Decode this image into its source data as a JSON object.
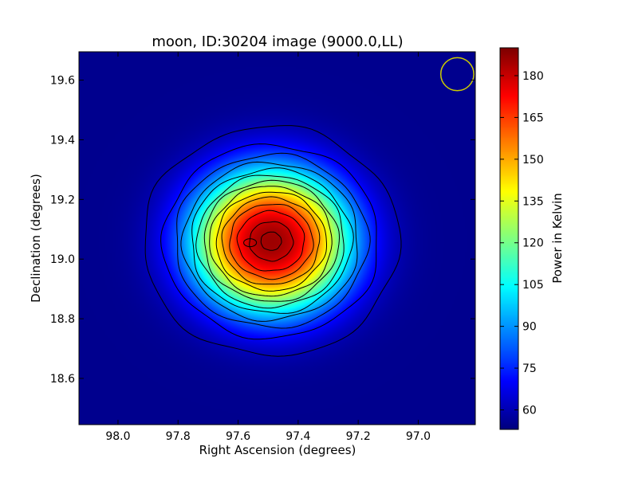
{
  "chart_data": {
    "type": "heatmap",
    "title": "moon, ID:30204 image (9000.0,LL)",
    "xlabel": "Right Ascension (degrees)",
    "ylabel": "Declination (degrees)",
    "xlim": [
      98.13,
      96.81
    ],
    "ylim": [
      18.445,
      19.695
    ],
    "x_ticks": [
      98.0,
      97.8,
      97.6,
      97.4,
      97.2,
      97.0
    ],
    "x_tick_labels": [
      "98.0",
      "97.8",
      "97.6",
      "97.4",
      "97.2",
      "97.0"
    ],
    "y_ticks": [
      18.6,
      18.8,
      19.0,
      19.2,
      19.4,
      19.6
    ],
    "y_tick_labels": [
      "18.6",
      "18.8",
      "19.0",
      "19.2",
      "19.4",
      "19.6"
    ],
    "grid": false,
    "colormap": "jet",
    "colorbar": {
      "label": "Power in Kelvin",
      "range": [
        53,
        190
      ],
      "ticks": [
        60,
        75,
        90,
        105,
        120,
        135,
        150,
        165,
        180
      ],
      "tick_labels": [
        "60",
        "75",
        "90",
        "105",
        "120",
        "135",
        "150",
        "165",
        "180"
      ]
    },
    "source": {
      "center_ra": 97.49,
      "center_dec": 19.06,
      "peak_kelvin": 186,
      "background_kelvin": 55
    },
    "contour_levels": [
      60,
      70,
      80,
      90,
      100,
      110,
      120,
      130,
      140,
      150,
      160,
      170,
      180,
      185
    ],
    "beam_circle": {
      "ra": 96.87,
      "dec": 19.62,
      "radius_deg": 0.055,
      "color": "#cccc00"
    }
  }
}
